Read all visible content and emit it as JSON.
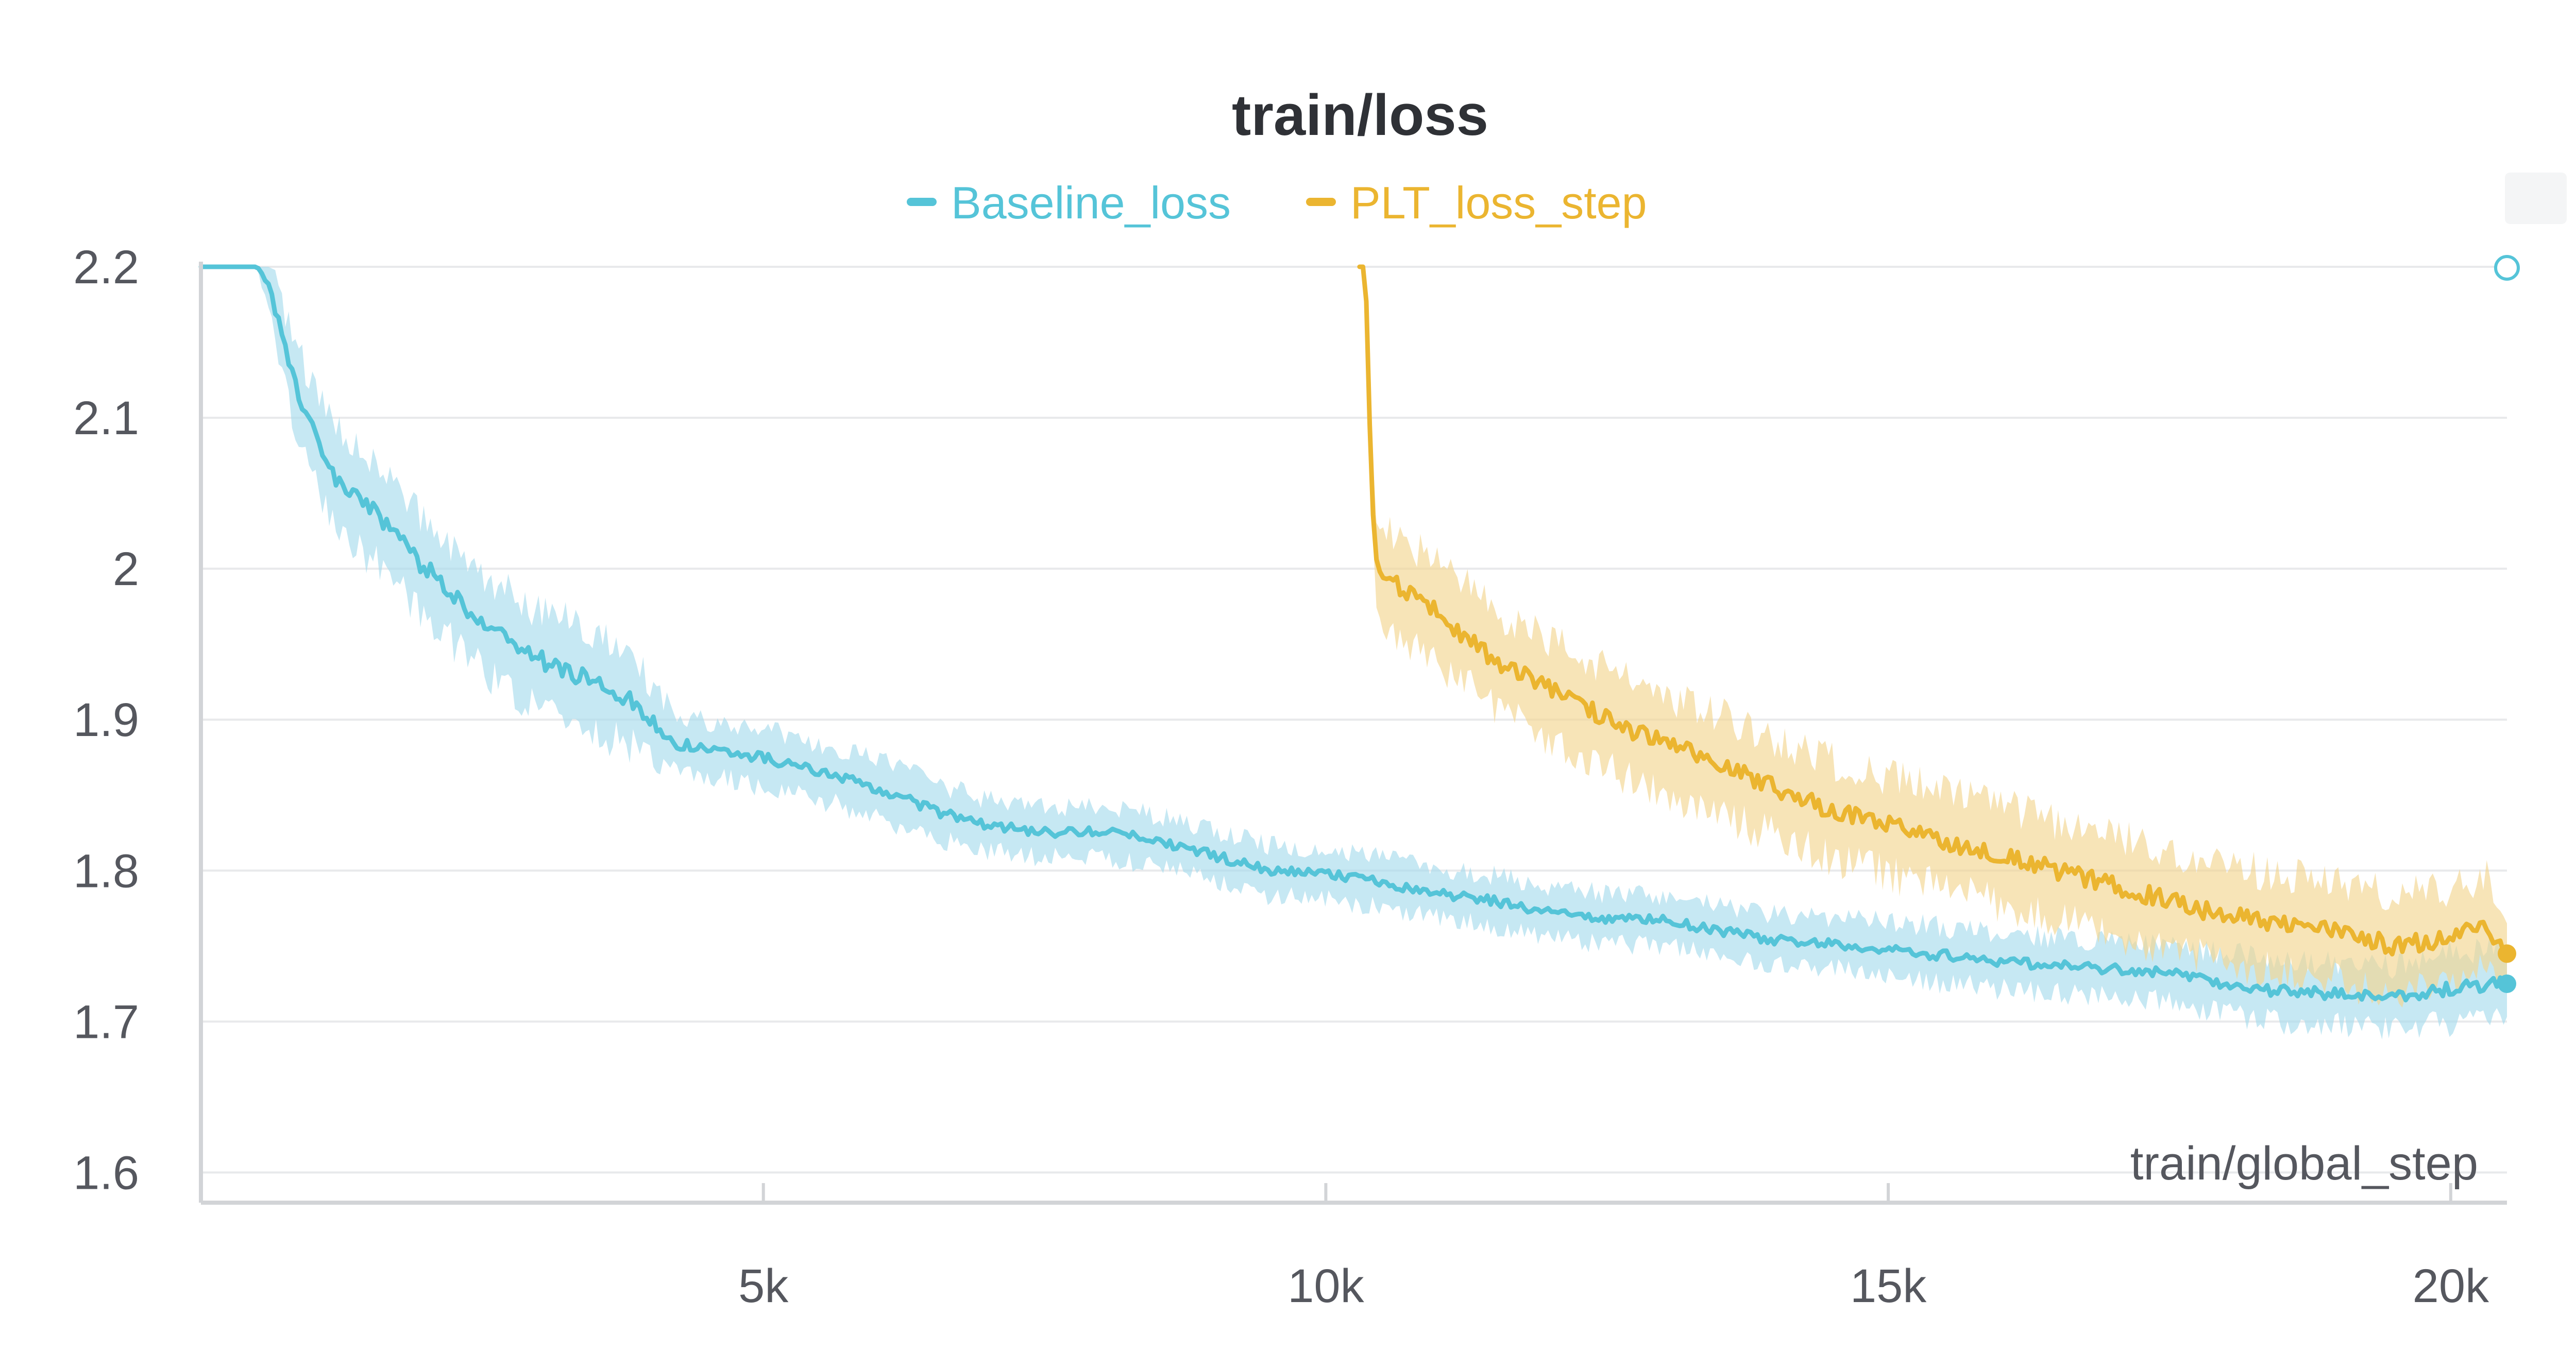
{
  "chart_data": {
    "type": "line",
    "title": "train/loss",
    "xlabel": "train/global_step",
    "ylabel": "",
    "xlim": [
      0,
      20500
    ],
    "ylim": [
      1.58,
      2.2
    ],
    "x_ticks": [
      5000,
      10000,
      15000,
      20000
    ],
    "x_tick_labels": [
      "5k",
      "10k",
      "15k",
      "20k"
    ],
    "y_ticks": [
      1.6,
      1.7,
      1.8,
      1.9,
      2.0,
      2.1,
      2.2
    ],
    "y_tick_labels": [
      "1.6",
      "1.7",
      "1.8",
      "1.9",
      "2",
      "2.1",
      "2.2"
    ],
    "grid": true,
    "legend_position": "top-center",
    "series": [
      {
        "name": "Baseline_loss",
        "color": "#55c4d8",
        "band_color": "#a8dcec",
        "x": [
          0,
          500,
          600,
          800,
          1000,
          1200,
          1500,
          2000,
          2500,
          3000,
          3500,
          3800,
          4000,
          4200,
          4500,
          5000,
          5500,
          6000,
          6500,
          7000,
          7500,
          8000,
          8500,
          9000,
          9500,
          10000,
          10500,
          11000,
          11500,
          12000,
          12500,
          13000,
          13500,
          14000,
          14500,
          15000,
          15500,
          16000,
          16500,
          17000,
          17500,
          18000,
          18500,
          19000,
          19500,
          20000,
          20500
        ],
        "y": [
          2.2,
          2.2,
          2.19,
          2.13,
          2.09,
          2.06,
          2.04,
          2.0,
          1.965,
          1.94,
          1.925,
          1.915,
          1.9,
          1.885,
          1.88,
          1.875,
          1.865,
          1.855,
          1.84,
          1.83,
          1.825,
          1.826,
          1.82,
          1.81,
          1.8,
          1.798,
          1.792,
          1.785,
          1.78,
          1.772,
          1.768,
          1.767,
          1.76,
          1.754,
          1.752,
          1.747,
          1.744,
          1.74,
          1.737,
          1.735,
          1.732,
          1.725,
          1.72,
          1.718,
          1.716,
          1.722,
          1.725
        ],
        "band_half_width": [
          0.0,
          0.0,
          0.02,
          0.03,
          0.03,
          0.035,
          0.035,
          0.035,
          0.035,
          0.035,
          0.035,
          0.035,
          0.025,
          0.022,
          0.02,
          0.02,
          0.02,
          0.02,
          0.02,
          0.018,
          0.018,
          0.018,
          0.018,
          0.018,
          0.018,
          0.018,
          0.018,
          0.018,
          0.018,
          0.018,
          0.018,
          0.018,
          0.018,
          0.018,
          0.018,
          0.02,
          0.02,
          0.02,
          0.02,
          0.02,
          0.02,
          0.022,
          0.022,
          0.022,
          0.022,
          0.025,
          0.028
        ],
        "last_value": 1.725
      },
      {
        "name": "PLT_loss_step",
        "color": "#ebb530",
        "band_color": "#f3d690",
        "x": [
          10300,
          10350,
          10380,
          10400,
          10450,
          10500,
          10700,
          11000,
          11500,
          12000,
          12500,
          13000,
          13500,
          14000,
          14500,
          15000,
          15500,
          16000,
          16500,
          17000,
          17500,
          18000,
          18500,
          19000,
          19500,
          20000,
          20300,
          20500
        ],
        "y": [
          2.2,
          2.2,
          2.13,
          2.06,
          2.01,
          2.0,
          1.985,
          1.97,
          1.94,
          1.92,
          1.9,
          1.885,
          1.87,
          1.855,
          1.84,
          1.83,
          1.82,
          1.81,
          1.8,
          1.79,
          1.78,
          1.77,
          1.765,
          1.76,
          1.75,
          1.755,
          1.765,
          1.745
        ],
        "band_half_width": [
          0.0,
          0.0,
          0.02,
          0.03,
          0.035,
          0.035,
          0.035,
          0.035,
          0.035,
          0.035,
          0.035,
          0.035,
          0.035,
          0.035,
          0.035,
          0.035,
          0.035,
          0.035,
          0.035,
          0.035,
          0.035,
          0.035,
          0.035,
          0.035,
          0.035,
          0.035,
          0.035,
          0.035
        ],
        "last_value": 1.745
      }
    ]
  }
}
